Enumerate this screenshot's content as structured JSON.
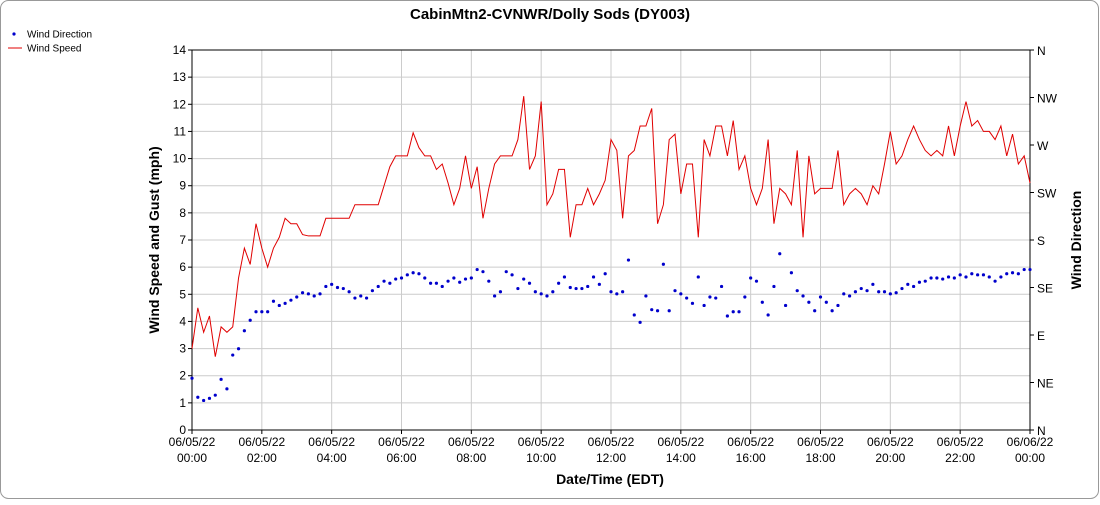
{
  "chart_data": {
    "type": "combo",
    "title": "CabinMtn2-CVNWR/Dolly Sods (DY003)",
    "xlabel": "Date/Time (EDT)",
    "ylabel": "Wind Speed and Gust (mph)",
    "y2label": "Wind Direction",
    "legend": "top-left",
    "grid": true,
    "xlim": [
      "2022-06-05 00:00",
      "2022-06-06 00:00"
    ],
    "xticks": [
      {
        "value": "2022-06-05 00:00",
        "label": [
          "06/05/22",
          "00:00"
        ]
      },
      {
        "value": "2022-06-05 02:00",
        "label": [
          "06/05/22",
          "02:00"
        ]
      },
      {
        "value": "2022-06-05 04:00",
        "label": [
          "06/05/22",
          "04:00"
        ]
      },
      {
        "value": "2022-06-05 06:00",
        "label": [
          "06/05/22",
          "06:00"
        ]
      },
      {
        "value": "2022-06-05 08:00",
        "label": [
          "06/05/22",
          "08:00"
        ]
      },
      {
        "value": "2022-06-05 10:00",
        "label": [
          "06/05/22",
          "10:00"
        ]
      },
      {
        "value": "2022-06-05 12:00",
        "label": [
          "06/05/22",
          "12:00"
        ]
      },
      {
        "value": "2022-06-05 14:00",
        "label": [
          "06/05/22",
          "14:00"
        ]
      },
      {
        "value": "2022-06-05 16:00",
        "label": [
          "06/05/22",
          "16:00"
        ]
      },
      {
        "value": "2022-06-05 18:00",
        "label": [
          "06/05/22",
          "18:00"
        ]
      },
      {
        "value": "2022-06-05 20:00",
        "label": [
          "06/05/22",
          "20:00"
        ]
      },
      {
        "value": "2022-06-05 22:00",
        "label": [
          "06/05/22",
          "22:00"
        ]
      },
      {
        "value": "2022-06-06 00:00",
        "label": [
          "06/06/22",
          "00:00"
        ]
      }
    ],
    "ylim": [
      0,
      14
    ],
    "yticks": [
      0,
      1,
      2,
      3,
      4,
      5,
      6,
      7,
      8,
      9,
      10,
      11,
      12,
      13,
      14
    ],
    "y2lim": [
      0,
      360
    ],
    "y2ticks": [
      {
        "value": 0,
        "label": "N"
      },
      {
        "value": 45,
        "label": "NE"
      },
      {
        "value": 90,
        "label": "E"
      },
      {
        "value": 135,
        "label": "SE"
      },
      {
        "value": 180,
        "label": "S"
      },
      {
        "value": 225,
        "label": "SW"
      },
      {
        "value": 270,
        "label": "W"
      },
      {
        "value": 315,
        "label": "NW"
      },
      {
        "value": 360,
        "label": "N"
      }
    ],
    "x": [
      "2022-06-05 00:00",
      "2022-06-05 00:10",
      "2022-06-05 00:20",
      "2022-06-05 00:30",
      "2022-06-05 00:40",
      "2022-06-05 00:50",
      "2022-06-05 01:00",
      "2022-06-05 01:10",
      "2022-06-05 01:20",
      "2022-06-05 01:30",
      "2022-06-05 01:40",
      "2022-06-05 01:50",
      "2022-06-05 02:00",
      "2022-06-05 02:10",
      "2022-06-05 02:20",
      "2022-06-05 02:30",
      "2022-06-05 02:40",
      "2022-06-05 02:50",
      "2022-06-05 03:00",
      "2022-06-05 03:10",
      "2022-06-05 03:20",
      "2022-06-05 03:30",
      "2022-06-05 03:40",
      "2022-06-05 03:50",
      "2022-06-05 04:00",
      "2022-06-05 04:10",
      "2022-06-05 04:20",
      "2022-06-05 04:30",
      "2022-06-05 04:40",
      "2022-06-05 04:50",
      "2022-06-05 05:00",
      "2022-06-05 05:10",
      "2022-06-05 05:20",
      "2022-06-05 05:30",
      "2022-06-05 05:40",
      "2022-06-05 05:50",
      "2022-06-05 06:00",
      "2022-06-05 06:10",
      "2022-06-05 06:20",
      "2022-06-05 06:30",
      "2022-06-05 06:40",
      "2022-06-05 06:50",
      "2022-06-05 07:00",
      "2022-06-05 07:10",
      "2022-06-05 07:20",
      "2022-06-05 07:30",
      "2022-06-05 07:40",
      "2022-06-05 07:50",
      "2022-06-05 08:00",
      "2022-06-05 08:10",
      "2022-06-05 08:20",
      "2022-06-05 08:30",
      "2022-06-05 08:40",
      "2022-06-05 08:50",
      "2022-06-05 09:00",
      "2022-06-05 09:10",
      "2022-06-05 09:20",
      "2022-06-05 09:30",
      "2022-06-05 09:40",
      "2022-06-05 09:50",
      "2022-06-05 10:00",
      "2022-06-05 10:10",
      "2022-06-05 10:20",
      "2022-06-05 10:30",
      "2022-06-05 10:40",
      "2022-06-05 10:50",
      "2022-06-05 11:00",
      "2022-06-05 11:10",
      "2022-06-05 11:20",
      "2022-06-05 11:30",
      "2022-06-05 11:40",
      "2022-06-05 11:50",
      "2022-06-05 12:00",
      "2022-06-05 12:10",
      "2022-06-05 12:20",
      "2022-06-05 12:30",
      "2022-06-05 12:40",
      "2022-06-05 12:50",
      "2022-06-05 13:00",
      "2022-06-05 13:10",
      "2022-06-05 13:20",
      "2022-06-05 13:30",
      "2022-06-05 13:40",
      "2022-06-05 13:50",
      "2022-06-05 14:00",
      "2022-06-05 14:10",
      "2022-06-05 14:20",
      "2022-06-05 14:30",
      "2022-06-05 14:40",
      "2022-06-05 14:50",
      "2022-06-05 15:00",
      "2022-06-05 15:10",
      "2022-06-05 15:20",
      "2022-06-05 15:30",
      "2022-06-05 15:40",
      "2022-06-05 15:50",
      "2022-06-05 16:00",
      "2022-06-05 16:10",
      "2022-06-05 16:20",
      "2022-06-05 16:30",
      "2022-06-05 16:40",
      "2022-06-05 16:50",
      "2022-06-05 17:00",
      "2022-06-05 17:10",
      "2022-06-05 17:20",
      "2022-06-05 17:30",
      "2022-06-05 17:40",
      "2022-06-05 17:50",
      "2022-06-05 18:00",
      "2022-06-05 18:10",
      "2022-06-05 18:20",
      "2022-06-05 18:30",
      "2022-06-05 18:40",
      "2022-06-05 18:50",
      "2022-06-05 19:00",
      "2022-06-05 19:10",
      "2022-06-05 19:20",
      "2022-06-05 19:30",
      "2022-06-05 19:40",
      "2022-06-05 19:50",
      "2022-06-05 20:00",
      "2022-06-05 20:10",
      "2022-06-05 20:20",
      "2022-06-05 20:30",
      "2022-06-05 20:40",
      "2022-06-05 20:50",
      "2022-06-05 21:00",
      "2022-06-05 21:10",
      "2022-06-05 21:20",
      "2022-06-05 21:30",
      "2022-06-05 21:40",
      "2022-06-05 21:50",
      "2022-06-05 22:00",
      "2022-06-05 22:10",
      "2022-06-05 22:20",
      "2022-06-05 22:30",
      "2022-06-05 22:40",
      "2022-06-05 22:50",
      "2022-06-05 23:00",
      "2022-06-05 23:10",
      "2022-06-05 23:20",
      "2022-06-05 23:30",
      "2022-06-05 23:40",
      "2022-06-05 23:50",
      "2022-06-06 00:00"
    ],
    "series": [
      {
        "name": "Wind Direction",
        "type": "scatter",
        "axis": "y2",
        "color": "#0000cc",
        "values": [
          49,
          31,
          28,
          30,
          33,
          48,
          39,
          71,
          77,
          94,
          104,
          112,
          112,
          112,
          122,
          118,
          120,
          123,
          126,
          130,
          129,
          127,
          129,
          136,
          138,
          135,
          134,
          131,
          125,
          127,
          125,
          132,
          136,
          141,
          139,
          143,
          144,
          147,
          149,
          148,
          144,
          139,
          139,
          136,
          141,
          144,
          140,
          143,
          144,
          152,
          150,
          141,
          127,
          131,
          150,
          147,
          134,
          143,
          139,
          131,
          129,
          127,
          131,
          139,
          145,
          135,
          134,
          134,
          136,
          145,
          138,
          148,
          131,
          129,
          131,
          161,
          109,
          102,
          127,
          114,
          113,
          157,
          113,
          132,
          129,
          125,
          120,
          145,
          118,
          126,
          125,
          136,
          108,
          112,
          112,
          126,
          144,
          141,
          121,
          109,
          136,
          167,
          118,
          149,
          132,
          127,
          121,
          113,
          126,
          121,
          113,
          118,
          129,
          127,
          131,
          134,
          132,
          138,
          131,
          131,
          129,
          130,
          134,
          138,
          136,
          140,
          141,
          144,
          144,
          143,
          145,
          144,
          147,
          145,
          148,
          147,
          147,
          145,
          141,
          145,
          148,
          149,
          148,
          152,
          152
        ]
      },
      {
        "name": "Wind Speed",
        "type": "line",
        "axis": "y",
        "color": "#e00000",
        "values": [
          3.0,
          4.5,
          3.6,
          4.2,
          2.7,
          3.8,
          3.6,
          3.8,
          5.6,
          6.7,
          6.1,
          7.6,
          6.7,
          6.0,
          6.7,
          7.1,
          7.8,
          7.6,
          7.6,
          7.2,
          7.15,
          7.15,
          7.15,
          7.8,
          7.8,
          7.8,
          7.8,
          7.8,
          8.3,
          8.3,
          8.3,
          8.3,
          8.3,
          9.0,
          9.7,
          10.1,
          10.1,
          10.1,
          10.95,
          10.4,
          10.1,
          10.1,
          9.6,
          9.8,
          9.1,
          8.3,
          8.9,
          10.1,
          8.9,
          9.7,
          7.8,
          8.9,
          9.8,
          10.1,
          10.1,
          10.1,
          10.7,
          12.3,
          9.6,
          10.1,
          12.1,
          8.3,
          8.7,
          9.6,
          9.6,
          7.1,
          8.3,
          8.3,
          8.9,
          8.3,
          8.7,
          9.2,
          10.7,
          10.3,
          7.8,
          10.1,
          10.3,
          11.2,
          11.2,
          11.85,
          7.6,
          8.3,
          10.7,
          10.9,
          8.7,
          9.8,
          9.8,
          7.1,
          10.7,
          10.1,
          11.2,
          11.2,
          10.1,
          11.4,
          9.6,
          10.1,
          8.9,
          8.3,
          8.9,
          10.7,
          7.6,
          8.9,
          8.7,
          8.3,
          10.3,
          7.1,
          10.1,
          8.7,
          8.9,
          8.9,
          8.9,
          10.3,
          8.3,
          8.7,
          8.9,
          8.7,
          8.3,
          9.0,
          8.7,
          9.8,
          11.0,
          9.8,
          10.1,
          10.7,
          11.2,
          10.7,
          10.3,
          10.1,
          10.3,
          10.1,
          11.2,
          10.1,
          11.2,
          12.1,
          11.2,
          11.4,
          11.0,
          11.0,
          10.7,
          11.2,
          10.1,
          10.9,
          9.8,
          10.1,
          9.1
        ]
      }
    ]
  }
}
